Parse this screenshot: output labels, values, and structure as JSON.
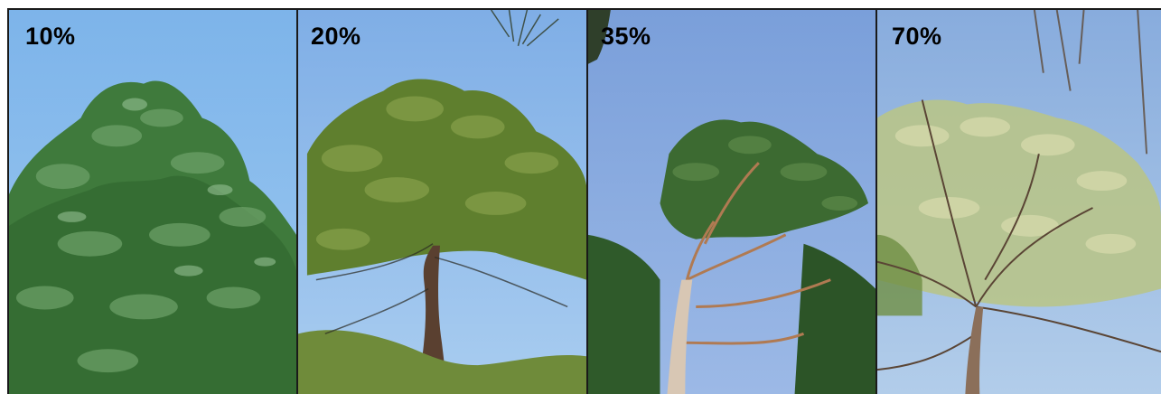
{
  "panels": [
    {
      "label": "10%",
      "scene": "pine-crown-dense-foliage"
    },
    {
      "label": "20%",
      "scene": "pine-crown-moderate-defoliation"
    },
    {
      "label": "35%",
      "scene": "pine-crown-sparse-branches"
    },
    {
      "label": "70%",
      "scene": "pine-crown-heavy-defoliation"
    }
  ],
  "colors": {
    "sky_1": "#7fb6ea",
    "sky_2": "#86b3e6",
    "sky_3": "#7ea2d9",
    "sky_4": "#8eb2e2",
    "foliage_dense": "#3f7a3c",
    "foliage_mid": "#5f7f2e",
    "foliage_light": "#b8c489",
    "bark": "#6b4a36"
  }
}
